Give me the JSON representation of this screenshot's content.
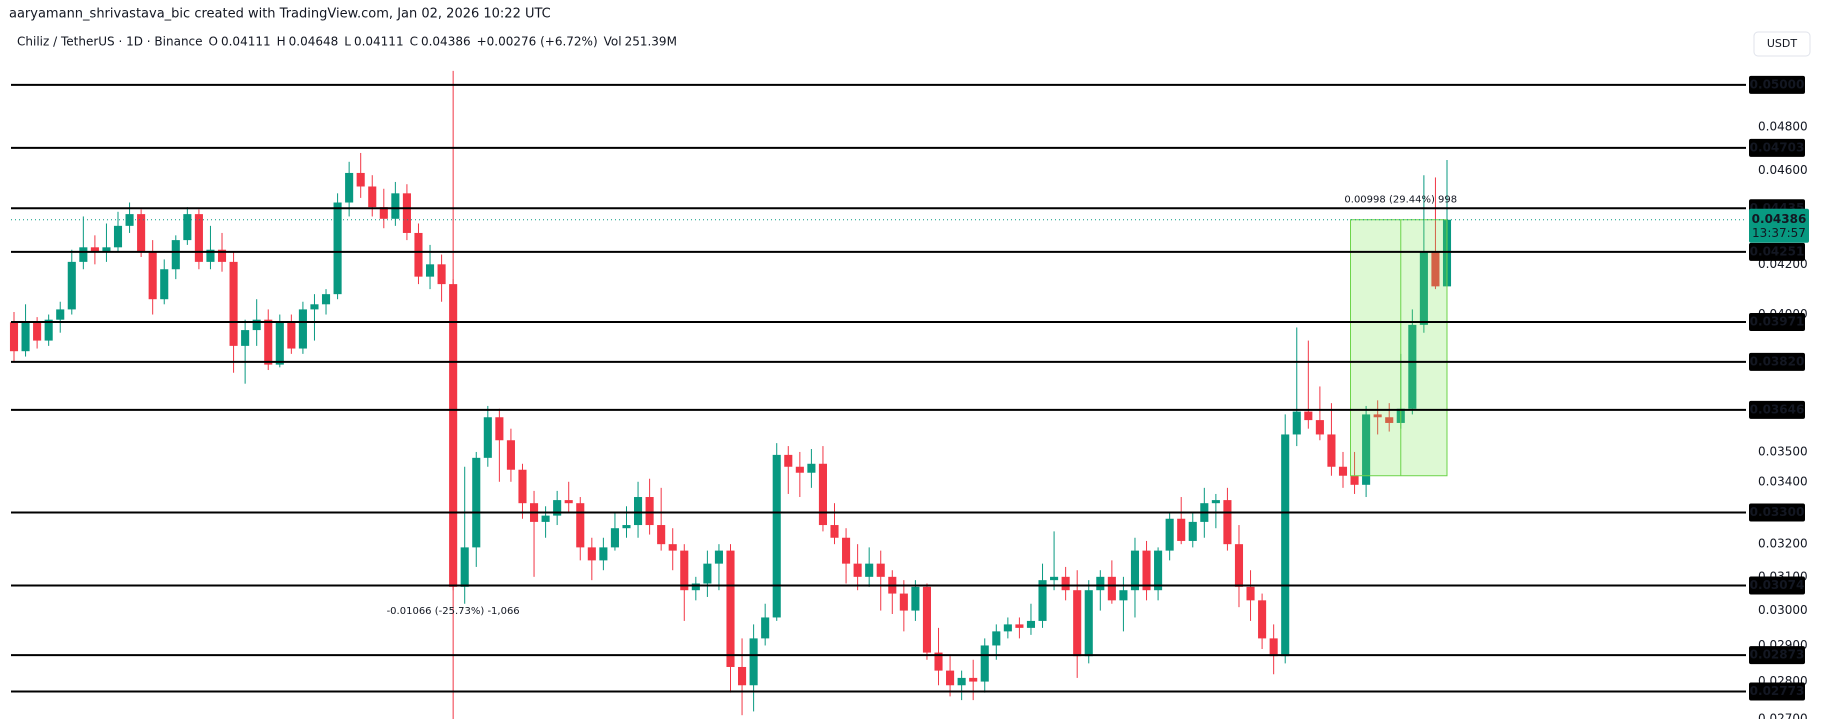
{
  "chart_data": {
    "type": "candlestick",
    "header": "aaryamann_shrivastava_bic created with TradingView.com, Jan 02, 2026 10:22 UTC",
    "title": "Chiliz / TetherUS · 1D · Binance",
    "legend": {
      "items": [
        {
          "key": "O",
          "value": "0.04111"
        },
        {
          "key": "H",
          "value": "0.04648"
        },
        {
          "key": "L",
          "value": "0.04111"
        },
        {
          "key": "C",
          "value": "0.04386"
        }
      ],
      "change": "+0.00276 (+6.72%)",
      "volume_key": "Vol",
      "volume": "251.39M"
    },
    "currency": "USDT",
    "log_scale": true,
    "grid": false,
    "up_color": "#089981",
    "down_color": "#f23645",
    "ylim": [
      0.027,
      0.0543
    ],
    "yticks": [
      {
        "value": 0.048,
        "label": "0.04800"
      },
      {
        "value": 0.046,
        "label": "0.04600"
      },
      {
        "value": 0.042,
        "label": "0.04200"
      },
      {
        "value": 0.04,
        "label": "0.04000"
      },
      {
        "value": 0.035,
        "label": "0.03500"
      },
      {
        "value": 0.034,
        "label": "0.03400"
      },
      {
        "value": 0.032,
        "label": "0.03200"
      },
      {
        "value": 0.031,
        "label": "0.03100"
      },
      {
        "value": 0.03,
        "label": "0.03000"
      },
      {
        "value": 0.029,
        "label": "0.02900"
      },
      {
        "value": 0.028,
        "label": "0.02800"
      },
      {
        "value": 0.027,
        "label": "0.02700"
      }
    ],
    "levels": [
      {
        "value": 0.05,
        "label": "0.05000"
      },
      0.04703,
      0.04435,
      0.04251,
      0.03971,
      {
        "value": 0.0382,
        "label": "0.03820"
      },
      0.03646,
      {
        "value": 0.033,
        "label": "0.03300"
      },
      0.03074,
      0.02873,
      0.02773
    ],
    "last_price": 0.04386,
    "countdown": "13:37:57",
    "measure_up": "0.00998 (29.44%) 998",
    "measure_down": "-0.01066 (-25.73%) -1,066",
    "candles": {
      "open": [
        0.0397,
        0.0386,
        0.0397,
        0.039,
        0.0398,
        0.0402,
        0.0421,
        0.0427,
        0.0425,
        0.0427,
        0.0436,
        0.0441,
        0.0425,
        0.0406,
        0.0418,
        0.043,
        0.0441,
        0.0421,
        0.0426,
        0.0421,
        0.0388,
        0.0394,
        0.0398,
        0.0381,
        0.0397,
        0.0387,
        0.0402,
        0.0404,
        0.0408,
        0.0446,
        0.0459,
        0.0453,
        0.0444,
        0.0439,
        0.045,
        0.0433,
        0.0415,
        0.042,
        0.0412,
        0.0307,
        0.0319,
        0.0348,
        0.0362,
        0.0354,
        0.0344,
        0.0333,
        0.0327,
        0.0329,
        0.0334,
        0.0333,
        0.0319,
        0.0315,
        0.0319,
        0.0325,
        0.0326,
        0.0335,
        0.0326,
        0.032,
        0.0318,
        0.0306,
        0.0308,
        0.0314,
        0.0318,
        0.0284,
        0.0279,
        0.0292,
        0.0298,
        0.0349,
        0.0345,
        0.0343,
        0.0346,
        0.0326,
        0.0322,
        0.0314,
        0.031,
        0.0314,
        0.031,
        0.0305,
        0.03,
        0.0307,
        0.0288,
        0.0283,
        0.0279,
        0.0281,
        0.028,
        0.029,
        0.0294,
        0.0296,
        0.0295,
        0.0297,
        0.0309,
        0.031,
        0.0306,
        0.0287,
        0.0306,
        0.031,
        0.0303,
        0.0306,
        0.0318,
        0.0306,
        0.0318,
        0.0328,
        0.0321,
        0.0327,
        0.0333,
        0.0334,
        0.032,
        0.0307,
        0.0303,
        0.0292,
        0.0287,
        0.0356,
        0.0364,
        0.0361,
        0.0356,
        0.0345,
        0.0342,
        0.0339,
        0.0363,
        0.0362,
        0.036,
        0.0365,
        0.0396,
        0.0425,
        0.04111
      ],
      "high": [
        0.0401,
        0.0404,
        0.0399,
        0.04,
        0.0405,
        0.0426,
        0.044,
        0.0432,
        0.0437,
        0.0442,
        0.0446,
        0.0443,
        0.043,
        0.0422,
        0.0432,
        0.0444,
        0.0443,
        0.0436,
        0.0433,
        0.0425,
        0.0398,
        0.0406,
        0.0402,
        0.04,
        0.04,
        0.0405,
        0.0408,
        0.041,
        0.045,
        0.0464,
        0.0468,
        0.0458,
        0.0452,
        0.0455,
        0.0454,
        0.0437,
        0.0428,
        0.0424,
        0.0414,
        0.0345,
        0.035,
        0.0366,
        0.0365,
        0.0358,
        0.0346,
        0.0337,
        0.0332,
        0.0337,
        0.034,
        0.0335,
        0.0322,
        0.0322,
        0.033,
        0.0332,
        0.034,
        0.0341,
        0.0338,
        0.0325,
        0.032,
        0.031,
        0.0318,
        0.032,
        0.032,
        0.0292,
        0.0296,
        0.0302,
        0.0353,
        0.0352,
        0.035,
        0.0351,
        0.0352,
        0.0333,
        0.0325,
        0.032,
        0.0319,
        0.0318,
        0.0312,
        0.0309,
        0.0309,
        0.0308,
        0.0295,
        0.0287,
        0.0283,
        0.0286,
        0.0292,
        0.0296,
        0.0298,
        0.0298,
        0.0302,
        0.0314,
        0.0324,
        0.0313,
        0.0312,
        0.0309,
        0.0312,
        0.0315,
        0.031,
        0.0322,
        0.0321,
        0.0319,
        0.033,
        0.0335,
        0.033,
        0.0338,
        0.0336,
        0.0338,
        0.0326,
        0.0312,
        0.0305,
        0.0296,
        0.0363,
        0.0395,
        0.039,
        0.0373,
        0.0367,
        0.035,
        0.035,
        0.0366,
        0.0368,
        0.0367,
        0.0385,
        0.0402,
        0.0458,
        0.0457,
        0.04648
      ],
      "low": [
        0.0382,
        0.0384,
        0.0387,
        0.0388,
        0.0393,
        0.04,
        0.0418,
        0.042,
        0.0421,
        0.0425,
        0.0433,
        0.0423,
        0.04,
        0.0404,
        0.0414,
        0.0428,
        0.0418,
        0.0418,
        0.0417,
        0.0378,
        0.0374,
        0.0388,
        0.0379,
        0.038,
        0.0385,
        0.0385,
        0.039,
        0.04,
        0.0406,
        0.044,
        0.0448,
        0.044,
        0.0435,
        0.0436,
        0.043,
        0.0412,
        0.041,
        0.0405,
        0.0306,
        0.0302,
        0.0313,
        0.0345,
        0.034,
        0.034,
        0.0328,
        0.031,
        0.0322,
        0.0326,
        0.033,
        0.0315,
        0.0309,
        0.0312,
        0.0318,
        0.0322,
        0.0322,
        0.0323,
        0.0318,
        0.0312,
        0.0297,
        0.0303,
        0.0304,
        0.0306,
        0.0277,
        0.0271,
        0.0272,
        0.029,
        0.0297,
        0.0336,
        0.0335,
        0.0338,
        0.0324,
        0.032,
        0.0308,
        0.0306,
        0.0307,
        0.03,
        0.0299,
        0.0294,
        0.0297,
        0.0286,
        0.0279,
        0.0276,
        0.0275,
        0.0275,
        0.0277,
        0.0286,
        0.0292,
        0.0292,
        0.0293,
        0.0295,
        0.0306,
        0.0303,
        0.0281,
        0.0285,
        0.03,
        0.0302,
        0.0294,
        0.0298,
        0.0303,
        0.0303,
        0.0315,
        0.032,
        0.0319,
        0.0322,
        0.0325,
        0.0318,
        0.0301,
        0.0297,
        0.0289,
        0.0282,
        0.0285,
        0.0352,
        0.0358,
        0.0354,
        0.0342,
        0.0338,
        0.0336,
        0.0335,
        0.0356,
        0.0357,
        0.0358,
        0.0363,
        0.0393,
        0.041,
        0.04111
      ],
      "close": [
        0.0386,
        0.0397,
        0.039,
        0.0398,
        0.0402,
        0.0421,
        0.0427,
        0.0425,
        0.0427,
        0.0436,
        0.0441,
        0.0425,
        0.0406,
        0.0418,
        0.043,
        0.0441,
        0.0421,
        0.0426,
        0.0421,
        0.0388,
        0.0394,
        0.0398,
        0.0381,
        0.0397,
        0.0387,
        0.0402,
        0.0404,
        0.0408,
        0.0446,
        0.0459,
        0.0453,
        0.0444,
        0.0439,
        0.045,
        0.0433,
        0.0415,
        0.042,
        0.0412,
        0.0307,
        0.0319,
        0.0348,
        0.0362,
        0.0354,
        0.0344,
        0.0333,
        0.0327,
        0.0329,
        0.0334,
        0.0333,
        0.0319,
        0.0315,
        0.0319,
        0.0325,
        0.0326,
        0.0335,
        0.0326,
        0.032,
        0.0318,
        0.0306,
        0.0308,
        0.0314,
        0.0318,
        0.0284,
        0.0279,
        0.0292,
        0.0298,
        0.0349,
        0.0345,
        0.0343,
        0.0346,
        0.0326,
        0.0322,
        0.0314,
        0.031,
        0.0314,
        0.031,
        0.0305,
        0.03,
        0.0307,
        0.0288,
        0.0283,
        0.0279,
        0.0281,
        0.028,
        0.029,
        0.0294,
        0.0296,
        0.0295,
        0.0297,
        0.0309,
        0.031,
        0.0306,
        0.0287,
        0.0306,
        0.031,
        0.0303,
        0.0306,
        0.0318,
        0.0306,
        0.0318,
        0.0328,
        0.0321,
        0.0327,
        0.0333,
        0.0334,
        0.032,
        0.0307,
        0.0303,
        0.0292,
        0.0287,
        0.0356,
        0.0364,
        0.0361,
        0.0356,
        0.0345,
        0.0342,
        0.0339,
        0.0363,
        0.0362,
        0.036,
        0.0365,
        0.0396,
        0.0425,
        0.04111,
        0.04386
      ]
    }
  }
}
